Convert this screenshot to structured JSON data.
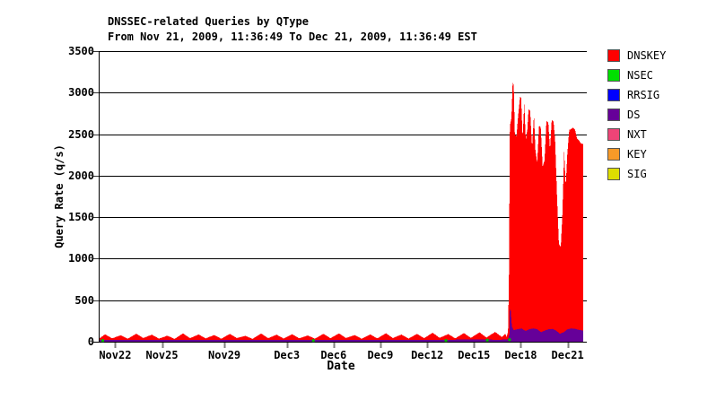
{
  "header": {
    "title": "DNSSEC-related Queries by QType",
    "subtitle": "From Nov 21, 2009, 11:36:49 To Dec 21, 2009, 11:36:49 EST"
  },
  "chart_data": {
    "type": "area",
    "stacked": true,
    "title": "DNSSEC-related Queries by QType",
    "subtitle": "From Nov 21, 2009, 11:36:49 To Dec 21, 2009, 11:36:49 EST",
    "xlabel": "Date",
    "ylabel": "Query Rate (q/s)",
    "ylim": [
      0,
      3500
    ],
    "y_ticks": [
      0,
      500,
      1000,
      1500,
      2000,
      2500,
      3000,
      3500
    ],
    "grid": true,
    "legend_position": "right",
    "x_axis_start": "Nov 21, 2009",
    "x_range_days": 31,
    "x_unit": "days since Nov 21, 2009 00:00",
    "x_ticks": [
      {
        "label": "Nov22",
        "day": 1
      },
      {
        "label": "Nov25",
        "day": 4
      },
      {
        "label": "Nov29",
        "day": 8
      },
      {
        "label": "Dec3",
        "day": 12
      },
      {
        "label": "Dec6",
        "day": 15
      },
      {
        "label": "Dec9",
        "day": 18
      },
      {
        "label": "Dec12",
        "day": 21
      },
      {
        "label": "Dec15",
        "day": 24
      },
      {
        "label": "Dec18",
        "day": 27
      },
      {
        "label": "Dec21",
        "day": 30
      }
    ],
    "series": [
      {
        "name": "DNSKEY",
        "color": "#ff0000",
        "style": "area",
        "points": [
          [
            0,
            40
          ],
          [
            0.35,
            90
          ],
          [
            0.8,
            40
          ],
          [
            1.35,
            78
          ],
          [
            1.8,
            36
          ],
          [
            2.35,
            96
          ],
          [
            2.8,
            44
          ],
          [
            3.35,
            84
          ],
          [
            3.8,
            38
          ],
          [
            4.35,
            72
          ],
          [
            4.8,
            34
          ],
          [
            5.35,
            100
          ],
          [
            5.8,
            42
          ],
          [
            6.35,
            88
          ],
          [
            6.8,
            40
          ],
          [
            7.35,
            80
          ],
          [
            7.8,
            36
          ],
          [
            8.35,
            94
          ],
          [
            8.8,
            44
          ],
          [
            9.35,
            70
          ],
          [
            9.8,
            34
          ],
          [
            10.35,
            98
          ],
          [
            10.8,
            42
          ],
          [
            11.35,
            84
          ],
          [
            11.8,
            38
          ],
          [
            12.35,
            90
          ],
          [
            12.8,
            40
          ],
          [
            13.35,
            76
          ],
          [
            13.8,
            36
          ],
          [
            14.35,
            95
          ],
          [
            14.8,
            42
          ],
          [
            15.35,
            100
          ],
          [
            15.8,
            44
          ],
          [
            16.35,
            80
          ],
          [
            16.8,
            36
          ],
          [
            17.35,
            88
          ],
          [
            17.8,
            40
          ],
          [
            18.35,
            102
          ],
          [
            18.8,
            44
          ],
          [
            19.35,
            86
          ],
          [
            19.8,
            38
          ],
          [
            20.35,
            94
          ],
          [
            20.8,
            42
          ],
          [
            21.35,
            108
          ],
          [
            21.8,
            46
          ],
          [
            22.35,
            92
          ],
          [
            22.8,
            40
          ],
          [
            23.35,
            104
          ],
          [
            23.8,
            46
          ],
          [
            24.35,
            112
          ],
          [
            24.8,
            50
          ],
          [
            25.35,
            118
          ],
          [
            25.8,
            55
          ],
          [
            26.0,
            95
          ],
          [
            26.1,
            60
          ],
          [
            26.18,
            120
          ],
          [
            26.24,
            700
          ],
          [
            26.3,
            2600
          ],
          [
            26.4,
            2690
          ],
          [
            26.48,
            3130
          ],
          [
            26.55,
            3090
          ],
          [
            26.62,
            2500
          ],
          [
            26.72,
            2470
          ],
          [
            26.83,
            2720
          ],
          [
            26.95,
            2950
          ],
          [
            27.02,
            2940
          ],
          [
            27.12,
            2450
          ],
          [
            27.22,
            2870
          ],
          [
            27.32,
            2430
          ],
          [
            27.42,
            2560
          ],
          [
            27.5,
            2800
          ],
          [
            27.6,
            2780
          ],
          [
            27.72,
            2340
          ],
          [
            27.84,
            2730
          ],
          [
            27.94,
            2300
          ],
          [
            28.05,
            2160
          ],
          [
            28.17,
            2600
          ],
          [
            28.28,
            2580
          ],
          [
            28.4,
            2110
          ],
          [
            28.52,
            2180
          ],
          [
            28.64,
            2660
          ],
          [
            28.76,
            2640
          ],
          [
            28.87,
            2310
          ],
          [
            28.98,
            2670
          ],
          [
            29.1,
            2650
          ],
          [
            29.2,
            2430
          ],
          [
            29.32,
            1760
          ],
          [
            29.44,
            1180
          ],
          [
            29.56,
            1140
          ],
          [
            29.66,
            1500
          ],
          [
            29.78,
            2300
          ],
          [
            29.88,
            1870
          ],
          [
            29.98,
            2260
          ],
          [
            30.1,
            2550
          ],
          [
            30.22,
            2560
          ],
          [
            30.35,
            2580
          ],
          [
            30.48,
            2550
          ],
          [
            30.6,
            2450
          ],
          [
            30.72,
            2430
          ],
          [
            30.85,
            2390
          ],
          [
            31,
            2380
          ]
        ]
      },
      {
        "name": "DS",
        "color": "#660099",
        "style": "area",
        "points": [
          [
            0,
            22
          ],
          [
            3,
            20
          ],
          [
            6,
            24
          ],
          [
            9,
            20
          ],
          [
            12,
            23
          ],
          [
            15,
            21
          ],
          [
            18,
            24
          ],
          [
            21,
            22
          ],
          [
            24,
            26
          ],
          [
            25.5,
            24
          ],
          [
            26.1,
            25
          ],
          [
            26.2,
            40
          ],
          [
            26.27,
            90
          ],
          [
            26.3,
            400
          ],
          [
            26.36,
            370
          ],
          [
            26.43,
            180
          ],
          [
            26.55,
            140
          ],
          [
            26.8,
            150
          ],
          [
            27.05,
            160
          ],
          [
            27.3,
            130
          ],
          [
            27.55,
            150
          ],
          [
            27.8,
            160
          ],
          [
            28.05,
            150
          ],
          [
            28.3,
            115
          ],
          [
            28.55,
            135
          ],
          [
            28.8,
            150
          ],
          [
            29.05,
            155
          ],
          [
            29.3,
            130
          ],
          [
            29.5,
            95
          ],
          [
            29.75,
            115
          ],
          [
            30.0,
            150
          ],
          [
            30.25,
            160
          ],
          [
            30.5,
            155
          ],
          [
            30.75,
            140
          ],
          [
            31,
            135
          ]
        ]
      },
      {
        "name": "NSEC",
        "color": "#00bb00",
        "style": "specks",
        "points": [
          [
            0.2,
            30
          ],
          [
            13.7,
            30
          ],
          [
            22.2,
            30
          ],
          [
            24.85,
            35
          ],
          [
            26.28,
            40
          ]
        ]
      }
    ]
  },
  "legend": {
    "items": [
      {
        "label": "DNSKEY",
        "color": "#ff0000"
      },
      {
        "label": "NSEC",
        "color": "#00e000"
      },
      {
        "label": "RRSIG",
        "color": "#0000ff"
      },
      {
        "label": "DS",
        "color": "#660099"
      },
      {
        "label": "NXT",
        "color": "#ee4477"
      },
      {
        "label": "KEY",
        "color": "#f79a28"
      },
      {
        "label": "SIG",
        "color": "#dede00"
      }
    ]
  }
}
